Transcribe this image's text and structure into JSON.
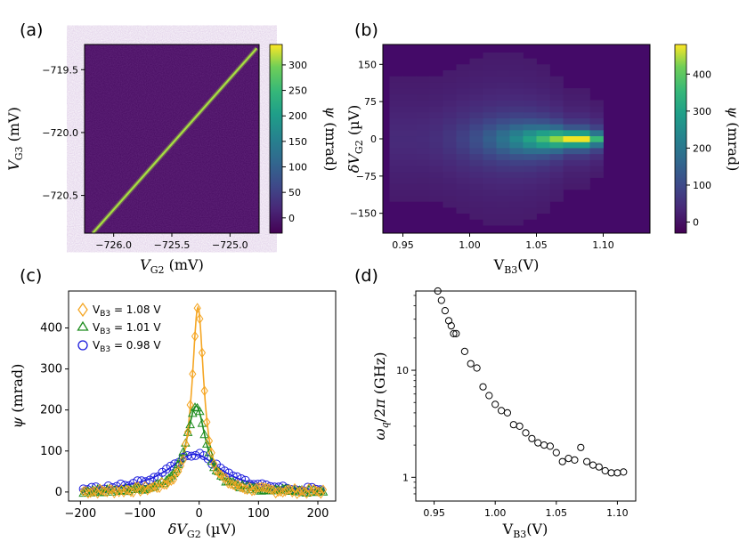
{
  "chart_data": [
    {
      "panel_label": "(a)",
      "type": "heatmap",
      "xlabel": "V_G2 (mV)",
      "ylabel": "V_G3 (mV)",
      "xlim": [
        -726.25,
        -724.75
      ],
      "ylim": [
        -720.8,
        -719.3
      ],
      "xticks": [
        "−726.0",
        "−725.5",
        "−725.0"
      ],
      "yticks": [
        "−719.5",
        "−720.0",
        "−720.5"
      ],
      "colorbar": {
        "label": "ψ (mrad)",
        "range": [
          -30,
          340
        ],
        "ticks": [
          "300",
          "250",
          "200",
          "150",
          "100",
          "50",
          "0"
        ]
      },
      "line": {
        "x": [
          -726.18,
          -724.77
        ],
        "y": [
          -720.8,
          -719.33
        ],
        "peak_value": 340
      },
      "background_color": "#45095f",
      "line_color": "#a7e040"
    },
    {
      "panel_label": "(b)",
      "type": "heatmap",
      "xlabel": "V_B3(V)",
      "ylabel": "δV_G2 (µV)",
      "xlim": [
        0.935,
        1.135
      ],
      "ylim": [
        -190,
        190
      ],
      "xticks": [
        "0.95",
        "1.00",
        "1.05",
        "1.10"
      ],
      "yticks": [
        "150",
        "75",
        "0",
        "−75",
        "−150"
      ],
      "colorbar": {
        "label": "ψ (mrad)",
        "range": [
          -30,
          480
        ],
        "ticks": [
          "400",
          "300",
          "200",
          "100",
          "0"
        ]
      },
      "background_color": "#440a68"
    },
    {
      "panel_label": "(c)",
      "type": "scatter",
      "xlabel": "δV_G2 (µV)",
      "ylabel": "ψ (mrad)",
      "xlim": [
        -220,
        230
      ],
      "ylim": [
        -22,
        490
      ],
      "xticks": [
        "−200",
        "−100",
        "0",
        "100",
        "200"
      ],
      "yticks": [
        "0",
        "100",
        "200",
        "300",
        "400"
      ],
      "series": [
        {
          "name": "V_B3 = 1.08 V",
          "marker": "diamond",
          "color": "#f5a623",
          "peak": 450,
          "width": 12,
          "offset": 2
        },
        {
          "name": "V_B3 = 1.01 V",
          "marker": "triangle",
          "color": "#1e8c1e",
          "peak": 210,
          "width": 20,
          "offset": 5
        },
        {
          "name": "V_B3 = 0.98 V",
          "marker": "circle",
          "color": "#1a1adc",
          "peak": 92,
          "width": 55,
          "offset": 8
        }
      ]
    },
    {
      "panel_label": "(d)",
      "type": "scatter",
      "xlabel": "V_B3(V)",
      "ylabel": "ω_q/2π (GHz)",
      "yscale": "log",
      "xlim": [
        0.935,
        1.115
      ],
      "ylim": [
        0.6,
        55
      ],
      "xticks": [
        "0.95",
        "1.00",
        "1.05",
        "1.10"
      ],
      "yticks": [
        "1",
        "10"
      ],
      "x": [
        0.953,
        0.956,
        0.959,
        0.962,
        0.964,
        0.966,
        0.968,
        0.975,
        0.98,
        0.985,
        0.99,
        0.995,
        1.0,
        1.005,
        1.01,
        1.015,
        1.02,
        1.025,
        1.03,
        1.035,
        1.04,
        1.045,
        1.05,
        1.055,
        1.06,
        1.065,
        1.07,
        1.075,
        1.08,
        1.085,
        1.09,
        1.095,
        1.1,
        1.105
      ],
      "y": [
        55,
        45,
        36,
        29,
        26,
        22,
        22,
        15,
        11.5,
        10.5,
        7,
        5.8,
        4.8,
        4.2,
        4.0,
        3.1,
        3.0,
        2.6,
        2.3,
        2.1,
        2.0,
        1.95,
        1.7,
        1.4,
        1.5,
        1.45,
        1.9,
        1.4,
        1.3,
        1.25,
        1.15,
        1.1,
        1.1,
        1.12
      ]
    }
  ]
}
